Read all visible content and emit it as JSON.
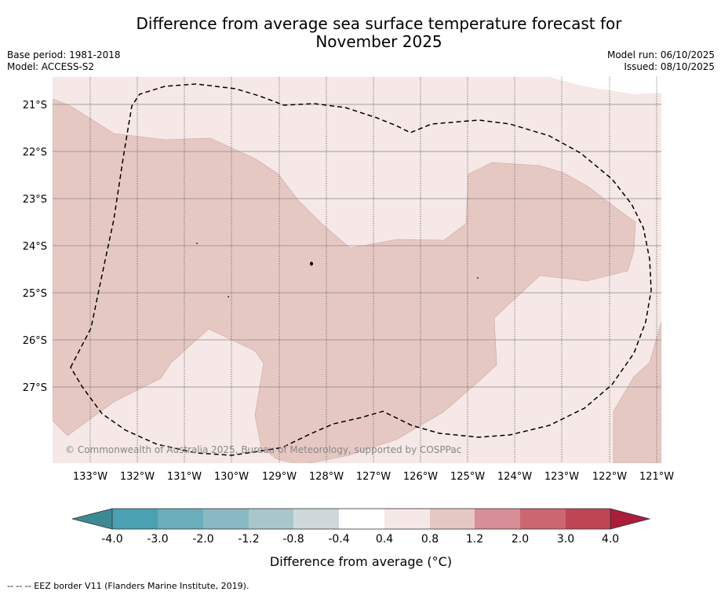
{
  "title": {
    "line1": "Difference from average sea surface temperature forecast for",
    "line2": "November 2025"
  },
  "meta": {
    "base_period": "Base period: 1981-2018",
    "model": "Model: ACCESS-S2",
    "model_run": "Model run: 06/10/2025",
    "issued": "Issued: 08/10/2025"
  },
  "map": {
    "lat_labels": [
      "21°S",
      "22°S",
      "23°S",
      "24°S",
      "25°S",
      "26°S",
      "27°S"
    ],
    "lon_labels": [
      "133°W",
      "132°W",
      "131°W",
      "130°W",
      "129°W",
      "128°W",
      "127°W",
      "126°W",
      "125°W",
      "124°W",
      "123°W",
      "122°W",
      "121°W"
    ],
    "copyright": "© Commonwealth of Australia 2025, Bureau of Meteorology, supported by COSPPac",
    "fill_colors": {
      "0.4_to_0.8": "#f5e8e7",
      "0.8_to_1.2": "#e6c8c3"
    }
  },
  "legend": {
    "ticks": [
      "-4.0",
      "-3.0",
      "-2.0",
      "-1.2",
      "-0.8",
      "-0.4",
      "0.4",
      "0.8",
      "1.2",
      "2.0",
      "3.0",
      "4.0"
    ],
    "colors": [
      "#4aa1b2",
      "#6aaebb",
      "#8ab9c3",
      "#a9c7cb",
      "#cfd8da",
      "#ffffff",
      "#f5e8e7",
      "#e6c8c3",
      "#d88e96",
      "#cc6670",
      "#bf4555"
    ],
    "under_color": "#3d8a95",
    "over_color": "#aa1e3c",
    "label": "Difference from average (°C)"
  },
  "footer": "--  --  -- EEZ border V11 (Flanders Marine Institute, 2019)."
}
